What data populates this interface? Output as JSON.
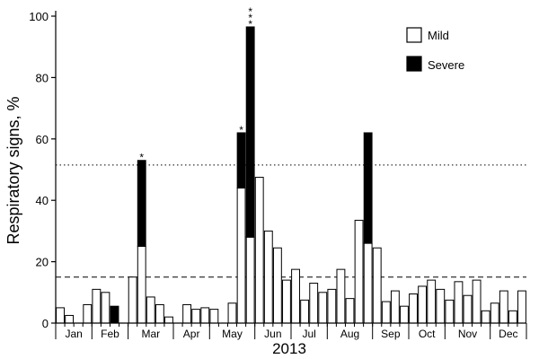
{
  "chart_data": {
    "type": "bar",
    "stacked": true,
    "title": "",
    "xlabel": "2013",
    "ylabel": "Respiratory signs, %",
    "ylim": [
      0,
      100
    ],
    "yticks": [
      0,
      20,
      40,
      60,
      80,
      100
    ],
    "months": [
      "Jan",
      "Feb",
      "Mar",
      "Apr",
      "May",
      "Jun",
      "Jul",
      "Aug",
      "Sep",
      "Oct",
      "Nov",
      "Dec"
    ],
    "month_week_ranges": [
      [
        0,
        4
      ],
      [
        4,
        8
      ],
      [
        8,
        13
      ],
      [
        13,
        17
      ],
      [
        17,
        22
      ],
      [
        22,
        26
      ],
      [
        26,
        30
      ],
      [
        30,
        35
      ],
      [
        35,
        39
      ],
      [
        39,
        43
      ],
      [
        43,
        48
      ],
      [
        48,
        52
      ]
    ],
    "week_count": 52,
    "series": [
      {
        "name": "Mild",
        "color": "#ffffff",
        "values": [
          5,
          2.5,
          0,
          6,
          11,
          10,
          0,
          0,
          15,
          25,
          8.5,
          6,
          2,
          0,
          6,
          4.5,
          5,
          4.5,
          0,
          6.5,
          44,
          28,
          47.5,
          30,
          24.5,
          14,
          17.5,
          7.5,
          13,
          10,
          11,
          17.5,
          8,
          33.5,
          26,
          24.5,
          7,
          10.5,
          5.5,
          9.5,
          12,
          14,
          11,
          7.5,
          13.5,
          9,
          14,
          4,
          6.5,
          10.5,
          4,
          10.5
        ]
      },
      {
        "name": "Severe",
        "color": "#000000",
        "values": [
          0,
          0,
          0,
          0,
          0,
          0,
          5.5,
          0,
          0,
          28,
          0,
          0,
          0,
          0,
          0,
          0,
          0,
          0,
          0,
          0,
          18,
          68.5,
          0,
          0,
          0,
          0,
          0,
          0,
          0,
          0,
          0,
          0,
          0,
          0,
          36,
          0,
          0,
          0,
          0,
          0,
          0,
          0,
          0,
          0,
          0,
          0,
          0,
          0,
          0,
          0,
          0,
          0
        ]
      }
    ],
    "reference_lines": [
      {
        "y": 51.5,
        "style": "dotted"
      },
      {
        "y": 15,
        "style": "dashed"
      }
    ],
    "annotations": [
      {
        "week": 9,
        "text": "*"
      },
      {
        "week": 20,
        "text": "*"
      },
      {
        "week": 21,
        "text": "***"
      }
    ],
    "legend": {
      "position": "top-right",
      "entries": [
        "Mild",
        "Severe"
      ]
    }
  }
}
